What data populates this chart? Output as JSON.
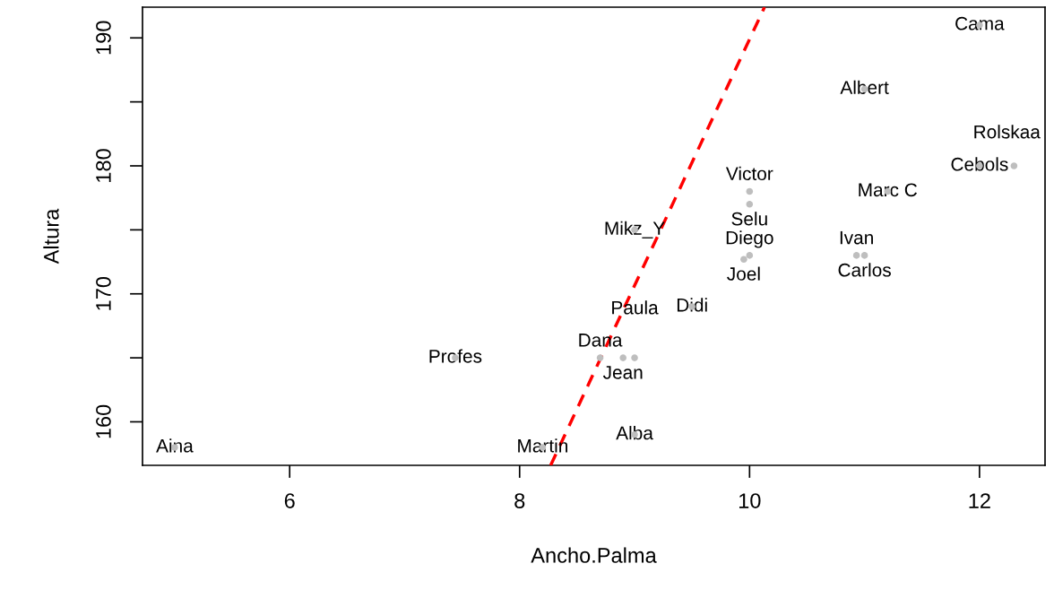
{
  "chart_data": {
    "type": "scatter",
    "xlabel": "Ancho.Palma",
    "ylabel": "Altura",
    "xlim": [
      4.72,
      12.57
    ],
    "ylim": [
      156.6,
      192.4
    ],
    "xticks": [
      6,
      8,
      10,
      12
    ],
    "yticks": [
      160,
      {
        "value": 165,
        "label": null
      },
      170,
      {
        "value": 175,
        "label": null
      },
      180,
      {
        "value": 185,
        "label": null
      },
      190
    ],
    "grid": false,
    "legend": false,
    "marker": "circle",
    "series": [
      {
        "color": "#bebebe",
        "x": [
          5.0,
          8.2,
          7.44,
          8.7,
          8.9,
          9.0,
          9.0,
          9.5,
          9.0,
          10.0,
          10.0,
          10.0,
          9.95,
          10.93,
          11.0,
          11.2,
          11.0,
          12.0,
          12.0,
          12.3
        ],
        "values": [
          158,
          158,
          165,
          165,
          165,
          165,
          175,
          169,
          159,
          178,
          177,
          173,
          172.7,
          173,
          173,
          178,
          186,
          191,
          180,
          180
        ]
      },
      {
        "type": "line",
        "color": "#ff0000",
        "line_style": "dashed",
        "marker": "none",
        "x": [
          8.27,
          10.13
        ],
        "values": [
          156.6,
          192.4
        ]
      }
    ],
    "annotations": [
      {
        "text": "Aina",
        "x": 5.0,
        "y": 158
      },
      {
        "text": "Martin",
        "x": 8.2,
        "y": 158
      },
      {
        "text": "Profes",
        "x": 7.44,
        "y": 165
      },
      {
        "text": "Dana",
        "x": 8.7,
        "y": 165
      },
      {
        "text": "Jean",
        "x": 8.9,
        "y": 165
      },
      {
        "text": "Paula",
        "x": 9.0,
        "y": 165
      },
      {
        "text": "Mikz_Y",
        "x": 9.0,
        "y": 175
      },
      {
        "text": "Didi",
        "x": 9.5,
        "y": 169
      },
      {
        "text": "Alba",
        "x": 9.0,
        "y": 159
      },
      {
        "text": "Victor",
        "x": 10.0,
        "y": 178
      },
      {
        "text": "Selu",
        "x": 10.0,
        "y": 177
      },
      {
        "text": "Diego",
        "x": 10.0,
        "y": 173
      },
      {
        "text": "Joel",
        "x": 9.95,
        "y": 172.7
      },
      {
        "text": "Ivan",
        "x": 10.93,
        "y": 173
      },
      {
        "text": "Carlos",
        "x": 11.0,
        "y": 173
      },
      {
        "text": "Marc C",
        "x": 11.2,
        "y": 178
      },
      {
        "text": "Albert",
        "x": 11.0,
        "y": 186
      },
      {
        "text": "Cama",
        "x": 12.0,
        "y": 191
      },
      {
        "text": "Cebols",
        "x": 12.0,
        "y": 180
      },
      {
        "text": "Rolskaa",
        "x": 12.3,
        "y": 180
      }
    ]
  }
}
